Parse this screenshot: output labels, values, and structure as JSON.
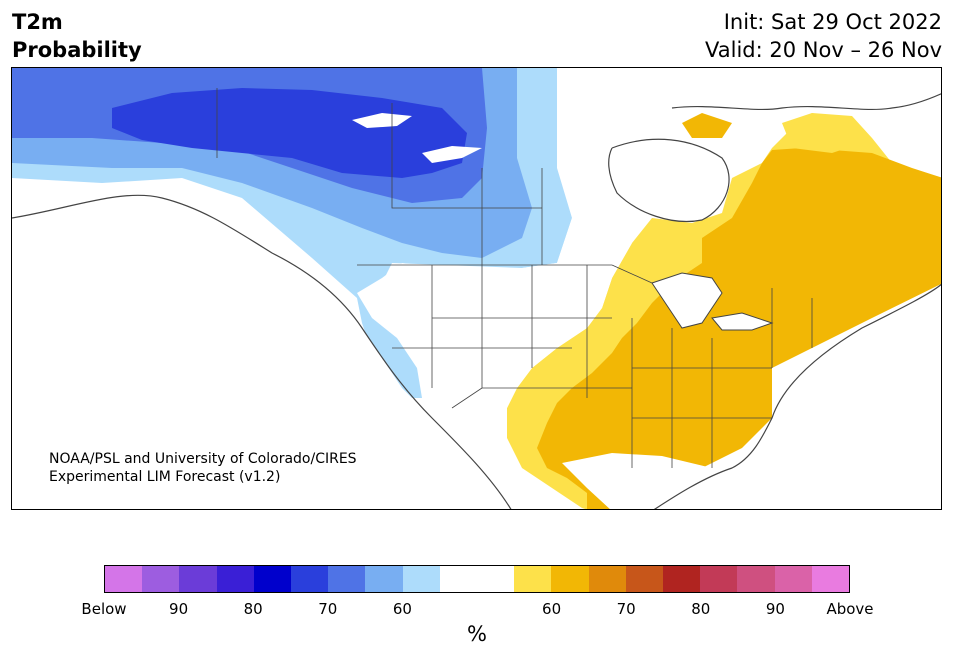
{
  "header": {
    "title_line1": "T2m",
    "title_line2": "Probability",
    "init": "Init: Sat 29 Oct 2022",
    "valid": "Valid: 20 Nov – 26 Nov"
  },
  "credit": {
    "line1": "NOAA/PSL and University of Colorado/CIRES",
    "line2": "Experimental LIM Forecast (v1.2)"
  },
  "colorbar": {
    "colors": [
      "#d475e8",
      "#9d5de0",
      "#6b3cd8",
      "#3a1fd6",
      "#0000cc",
      "#2a3fdc",
      "#4f73e6",
      "#78aef2",
      "#addcfb",
      "#ffffff",
      "#ffffff",
      "#fde14a",
      "#f2b705",
      "#e08a0b",
      "#c7561a",
      "#b02420",
      "#c23a57",
      "#cf5080",
      "#da62a8",
      "#e97be0"
    ],
    "tick_labels": [
      "Below",
      "90",
      "80",
      "70",
      "60",
      "60",
      "70",
      "80",
      "90",
      "Above"
    ],
    "unit_label": "%"
  },
  "map_colors": {
    "below_50": "#2a3fdc",
    "below_45": "#4f73e6",
    "below_40": "#78aef2",
    "below_35": "#addcfb",
    "above_35": "#fde14a",
    "above_40": "#f2b705",
    "coast": "#444444"
  }
}
